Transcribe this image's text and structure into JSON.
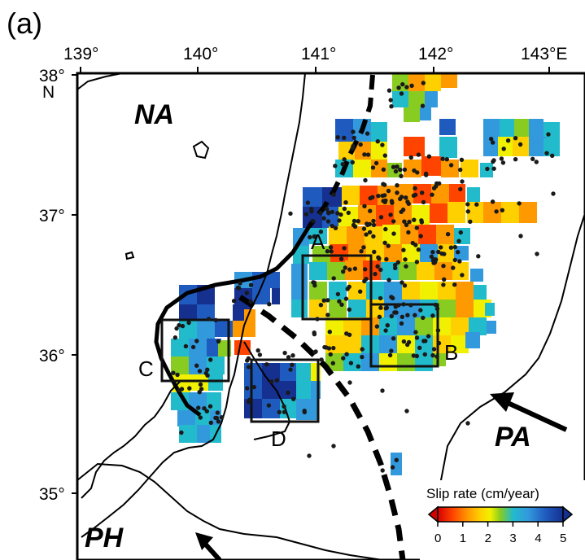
{
  "panel_label": "(a)",
  "lon_ticks": [
    "139°",
    "140°",
    "141°",
    "142°",
    "143°E"
  ],
  "lat_ticks": [
    "38°",
    "37°",
    "36°",
    "35°"
  ],
  "lat_hemisphere": "N",
  "plates": {
    "na": "NA",
    "pa": "PA",
    "ph": "PH"
  },
  "boxes": [
    "A",
    "B",
    "C",
    "D"
  ],
  "colorbar": {
    "title": "Slip rate (cm/year)",
    "ticks": [
      "0",
      "1",
      "2",
      "3",
      "4",
      "5"
    ],
    "min": 0,
    "max": 5,
    "colors": [
      "#d40000",
      "#ff4400",
      "#ff9900",
      "#ffd000",
      "#f0f000",
      "#88cc22",
      "#22bbcc",
      "#3399dd",
      "#1f5bbf",
      "#15308f"
    ]
  },
  "colors": {
    "coast": "#000000",
    "plate_boundary": "#000000",
    "event_dot": "#1a1a1a"
  }
}
